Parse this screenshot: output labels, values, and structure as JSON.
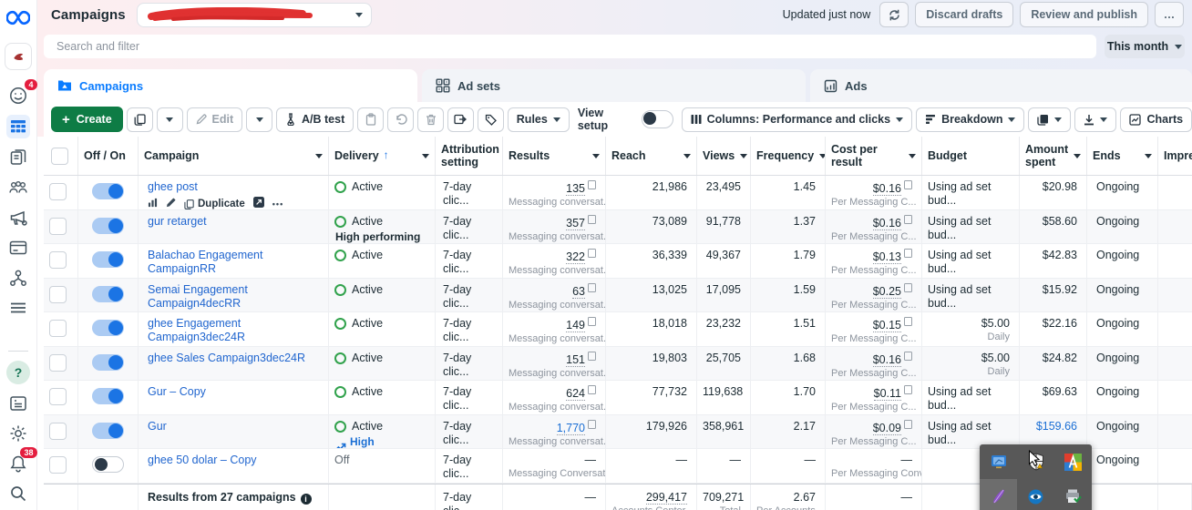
{
  "header": {
    "title": "Campaigns",
    "updated": "Updated just now",
    "discard_label": "Discard drafts",
    "review_label": "Review and publish",
    "more_label": "…"
  },
  "filter": {
    "search_placeholder": "Search and filter",
    "date_range_label": "This month"
  },
  "tabs": [
    {
      "label": "Campaigns",
      "active": true
    },
    {
      "label": "Ad sets",
      "active": false
    },
    {
      "label": "Ads",
      "active": false
    }
  ],
  "toolbar": {
    "create_plus": "+",
    "create_label": "Create",
    "edit_label": "Edit",
    "ab_test_label": "A/B test",
    "rules_label": "Rules",
    "view_setup_label": "View setup",
    "columns_label": "Columns: Performance and clicks",
    "breakdown_label": "Breakdown",
    "charts_label": "Charts"
  },
  "sidebar": {
    "apps_badge": "4",
    "notifications_badge": "38",
    "help_glyph": "?"
  },
  "table": {
    "sort_arrow_glyph": "↑",
    "row_actions": {
      "duplicate_label": "Duplicate",
      "more_glyph": "•••"
    },
    "columns": [
      {
        "id": "select",
        "label": ""
      },
      {
        "id": "off_on",
        "label": "Off / On",
        "caret": false
      },
      {
        "id": "campaign",
        "label": "Campaign",
        "caret": true
      },
      {
        "id": "delivery",
        "label": "Delivery",
        "caret": true,
        "sorted": true
      },
      {
        "id": "attribution_setting",
        "label": "Attribution setting",
        "caret": false
      },
      {
        "id": "results",
        "label": "Results",
        "caret": true
      },
      {
        "id": "reach",
        "label": "Reach",
        "caret": true
      },
      {
        "id": "views",
        "label": "Views",
        "caret": true
      },
      {
        "id": "frequency",
        "label": "Frequency",
        "caret": true
      },
      {
        "id": "cost_per_result",
        "label": "Cost per result",
        "caret": true
      },
      {
        "id": "budget",
        "label": "Budget",
        "caret": false
      },
      {
        "id": "amount_spent",
        "label": "Amount spent",
        "caret": true
      },
      {
        "id": "ends",
        "label": "Ends",
        "caret": true
      },
      {
        "id": "impressions",
        "label": "Impre",
        "caret": false
      }
    ],
    "rows": [
      {
        "name": "ghee post",
        "toggle": "on",
        "delivery": "Active",
        "delivery_state": "active",
        "badge": null,
        "attribution": "7-day clic...",
        "results": "135",
        "results_sub": "Messaging conversat...",
        "results_blue": false,
        "reach": "21,986",
        "views": "23,495",
        "frequency": "1.45",
        "cost": "$0.16",
        "cost_sub": "Per Messaging C...",
        "budget": "Using ad set bud...",
        "budget_sub": "",
        "amount": "$20.98",
        "amount_blue": false,
        "ends": "Ongoing",
        "show_actions": true
      },
      {
        "name": "gur retarget",
        "toggle": "on",
        "delivery": "Active",
        "delivery_state": "active",
        "badge": {
          "text": "High performing",
          "variant": "dark"
        },
        "attribution": "7-day clic...",
        "results": "357",
        "results_sub": "Messaging conversat...",
        "results_blue": false,
        "reach": "73,089",
        "views": "91,778",
        "frequency": "1.37",
        "cost": "$0.16",
        "cost_sub": "Per Messaging C...",
        "budget": "Using ad set bud...",
        "budget_sub": "",
        "amount": "$58.60",
        "amount_blue": false,
        "ends": "Ongoing",
        "show_actions": false
      },
      {
        "name": "Balachao Engagement CampaignRR",
        "toggle": "on",
        "delivery": "Active",
        "delivery_state": "active",
        "badge": null,
        "attribution": "7-day clic...",
        "results": "322",
        "results_sub": "Messaging conversat...",
        "results_blue": false,
        "reach": "36,339",
        "views": "49,367",
        "frequency": "1.79",
        "cost": "$0.13",
        "cost_sub": "Per Messaging C...",
        "budget": "Using ad set bud...",
        "budget_sub": "",
        "amount": "$42.83",
        "amount_blue": false,
        "ends": "Ongoing",
        "show_actions": false
      },
      {
        "name": "Semai Engagement Campaign4decRR",
        "toggle": "on",
        "delivery": "Active",
        "delivery_state": "active",
        "badge": null,
        "attribution": "7-day clic...",
        "results": "63",
        "results_sub": "Messaging conversat...",
        "results_blue": false,
        "reach": "13,025",
        "views": "17,095",
        "frequency": "1.59",
        "cost": "$0.25",
        "cost_sub": "Per Messaging C...",
        "budget": "Using ad set bud...",
        "budget_sub": "",
        "amount": "$15.92",
        "amount_blue": false,
        "ends": "Ongoing",
        "show_actions": false
      },
      {
        "name": "ghee Engagement Campaign3dec24R",
        "toggle": "on",
        "delivery": "Active",
        "delivery_state": "active",
        "badge": null,
        "attribution": "7-day clic...",
        "results": "149",
        "results_sub": "Messaging conversat...",
        "results_blue": false,
        "reach": "18,018",
        "views": "23,232",
        "frequency": "1.51",
        "cost": "$0.15",
        "cost_sub": "Per Messaging C...",
        "budget": "$5.00",
        "budget_sub": "Daily",
        "amount": "$22.16",
        "amount_blue": false,
        "ends": "Ongoing",
        "show_actions": false
      },
      {
        "name": "ghee Sales Campaign3dec24R",
        "toggle": "on",
        "delivery": "Active",
        "delivery_state": "active",
        "badge": null,
        "attribution": "7-day clic...",
        "results": "151",
        "results_sub": "Messaging conversat...",
        "results_blue": false,
        "reach": "19,803",
        "views": "25,705",
        "frequency": "1.68",
        "cost": "$0.16",
        "cost_sub": "Per Messaging C...",
        "budget": "$5.00",
        "budget_sub": "Daily",
        "amount": "$24.82",
        "amount_blue": false,
        "ends": "Ongoing",
        "show_actions": false
      },
      {
        "name": "Gur – Copy",
        "toggle": "on",
        "delivery": "Active",
        "delivery_state": "active",
        "badge": null,
        "attribution": "7-day clic...",
        "results": "624",
        "results_sub": "Messaging conversat...",
        "results_blue": false,
        "reach": "77,732",
        "views": "119,638",
        "frequency": "1.70",
        "cost": "$0.11",
        "cost_sub": "Per Messaging C...",
        "budget": "Using ad set bud...",
        "budget_sub": "",
        "amount": "$69.63",
        "amount_blue": false,
        "ends": "Ongoing",
        "show_actions": false
      },
      {
        "name": "Gur",
        "toggle": "on",
        "delivery": "Active",
        "delivery_state": "active",
        "badge": {
          "text": "High performing",
          "variant": "blue"
        },
        "attribution": "7-day clic...",
        "results": "1,770",
        "results_sub": "Messaging conversat...",
        "results_blue": true,
        "reach": "179,926",
        "views": "358,961",
        "frequency": "2.17",
        "cost": "$0.09",
        "cost_sub": "Per Messaging C...",
        "budget": "Using ad set bud...",
        "budget_sub": "",
        "amount": "$159.66",
        "amount_blue": true,
        "ends": "Ongoing",
        "show_actions": false
      },
      {
        "name": "ghee 50 dolar – Copy",
        "toggle": "off",
        "delivery": "Off",
        "delivery_state": "off",
        "badge": null,
        "attribution": "7-day clic...",
        "results": "—",
        "results_sub": "Messaging Conversatio...",
        "results_blue": false,
        "reach": "—",
        "views": "—",
        "frequency": "—",
        "cost": "—",
        "cost_sub": "Per Messaging Conv...",
        "budget": "",
        "budget_sub": "",
        "amount": "",
        "amount_blue": false,
        "ends": "Ongoing",
        "show_actions": false
      }
    ],
    "footer": {
      "label": "Results from 27 campaigns",
      "info_glyph": "i",
      "attribution": "7-day clic...",
      "results": "—",
      "reach": "299,417",
      "reach_sub": "Accounts Center ...",
      "views": "709,271",
      "views_sub": "Total",
      "frequency": "2.67",
      "frequency_sub": "Per Accounts ...",
      "cost": "—"
    }
  },
  "tray": {
    "icons": [
      "remote-desktop",
      "defender-shield",
      "a-logo",
      "feather",
      "eye",
      "printer-check"
    ]
  },
  "colors": {
    "accent_blue": "#0a7cff",
    "link_blue": "#2166cf",
    "toggle_blue": "#1b74e4",
    "create_green": "#0e7c45",
    "active_green": "#31a24c",
    "badge_red": "#e41e3f",
    "redaction_red": "#e03131"
  }
}
